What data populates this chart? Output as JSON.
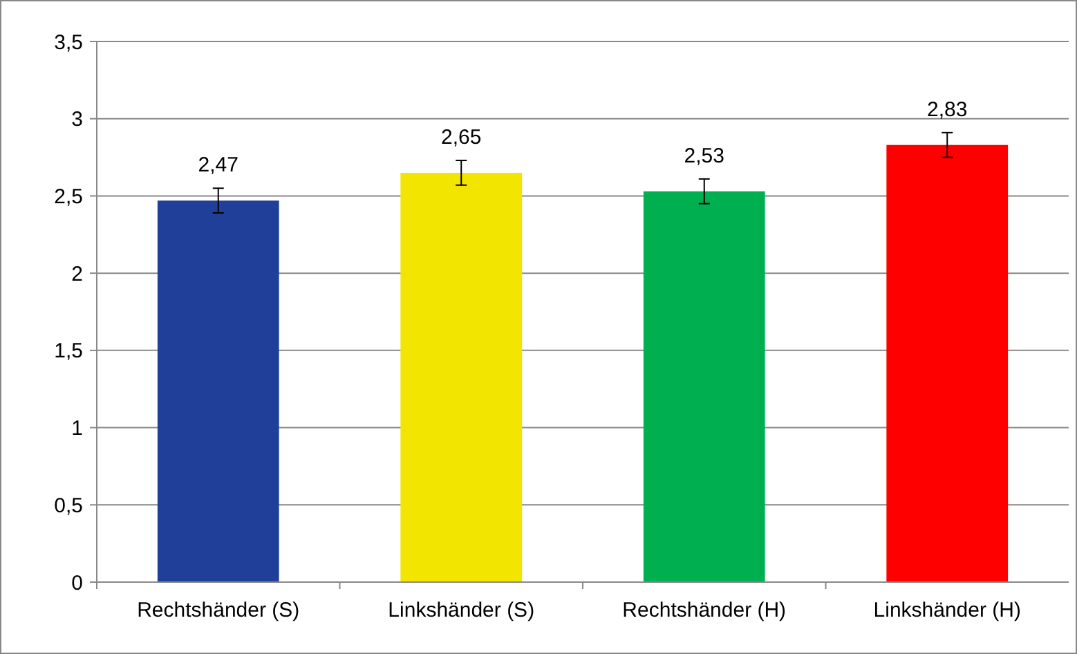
{
  "chart_data": {
    "type": "bar",
    "categories": [
      "Rechtshänder (S)",
      "Linkshänder (S)",
      "Rechtshänder (H)",
      "Linkshänder (H)"
    ],
    "values": [
      2.47,
      2.65,
      2.53,
      2.83
    ],
    "colors": [
      "#1f3f99",
      "#f2e600",
      "#00b050",
      "#ff0000"
    ],
    "errors": [
      0.08,
      0.08,
      0.08,
      0.08
    ],
    "value_labels": [
      "2,47",
      "2,65",
      "2,53",
      "2,83"
    ],
    "ylim": [
      0,
      3.5
    ],
    "yticks": [
      0,
      {
        "value": 0.5,
        "label": "0,5"
      },
      1,
      {
        "value": 1.5,
        "label": "1,5"
      },
      2,
      {
        "value": 2.5,
        "label": "2,5"
      },
      3,
      {
        "value": 3.5,
        "label": "3,5"
      }
    ],
    "grid": "y"
  }
}
